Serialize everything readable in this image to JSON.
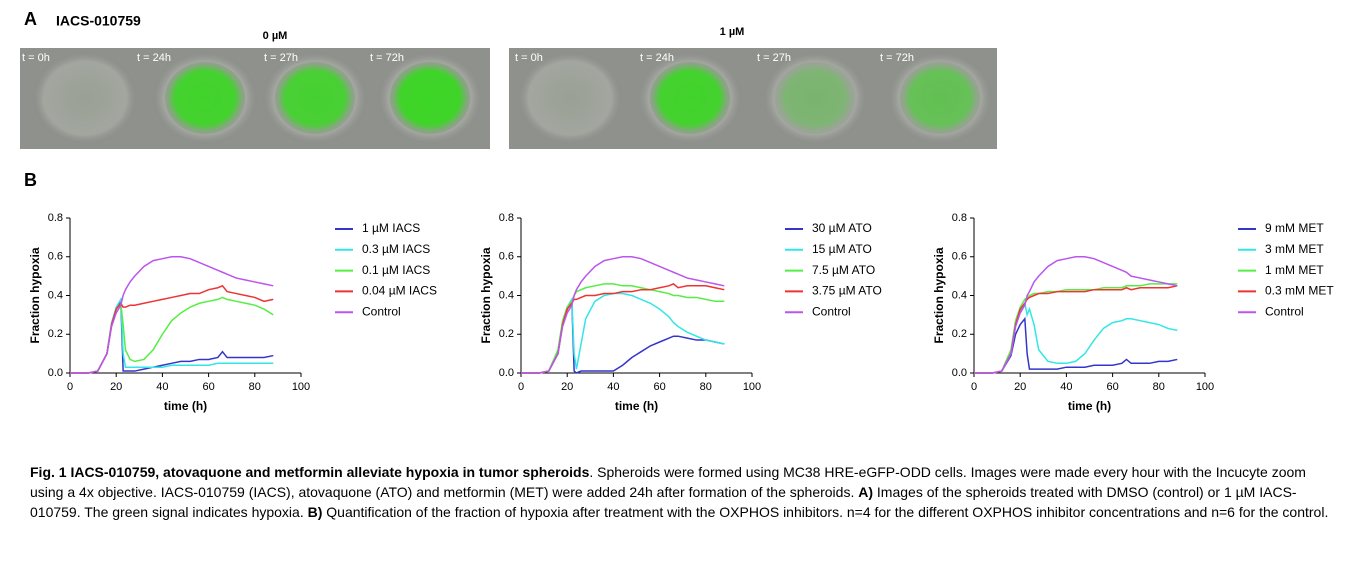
{
  "panel_a": {
    "label": "A",
    "title": "IACS-010759",
    "groups": [
      {
        "label": "0 µM",
        "frames": [
          "t = 0h",
          "t = 24h",
          "t = 27h",
          "t = 72h"
        ]
      },
      {
        "label": "1 µM",
        "frames": [
          "t = 0h",
          "t = 24h",
          "t = 27h",
          "t = 72h"
        ]
      }
    ]
  },
  "panel_b": {
    "label": "B"
  },
  "chart_data": [
    {
      "type": "line",
      "xlabel": "time (h)",
      "ylabel": "Fraction hypoxia",
      "xlim": [
        0,
        100
      ],
      "xticks": [
        0,
        20,
        40,
        60,
        80,
        100
      ],
      "ylim": [
        0,
        0.8
      ],
      "yticks": [
        {
          "value": 0,
          "label": "0.0"
        },
        0.2,
        0.4,
        0.6,
        0.8
      ],
      "x": [
        0,
        4,
        8,
        12,
        16,
        18,
        20,
        22,
        23,
        24,
        26,
        28,
        32,
        36,
        40,
        44,
        48,
        52,
        56,
        60,
        64,
        66,
        68,
        72,
        76,
        80,
        84,
        88
      ],
      "series": [
        {
          "name": "1 µM IACS",
          "color": "#3535cc",
          "values": [
            0,
            0,
            0,
            0.01,
            0.1,
            0.25,
            0.33,
            0.37,
            0.01,
            0.01,
            0.01,
            0.01,
            0.02,
            0.03,
            0.04,
            0.05,
            0.06,
            0.06,
            0.07,
            0.07,
            0.08,
            0.11,
            0.08,
            0.08,
            0.08,
            0.08,
            0.08,
            0.09
          ]
        },
        {
          "name": "0.3 µM IACS",
          "color": "#33e6e6",
          "values": [
            0,
            0,
            0,
            0.01,
            0.1,
            0.26,
            0.34,
            0.38,
            0.1,
            0.03,
            0.03,
            0.03,
            0.03,
            0.03,
            0.03,
            0.04,
            0.04,
            0.04,
            0.04,
            0.04,
            0.05,
            0.05,
            0.05,
            0.05,
            0.05,
            0.05,
            0.05,
            0.05
          ]
        },
        {
          "name": "0.1 µM IACS",
          "color": "#55ee44",
          "values": [
            0,
            0,
            0,
            0.01,
            0.1,
            0.25,
            0.33,
            0.36,
            0.25,
            0.12,
            0.07,
            0.06,
            0.07,
            0.12,
            0.2,
            0.27,
            0.31,
            0.34,
            0.36,
            0.37,
            0.38,
            0.39,
            0.38,
            0.37,
            0.36,
            0.35,
            0.33,
            0.3
          ]
        },
        {
          "name": "0.04 µM IACS",
          "color": "#ee3333",
          "values": [
            0,
            0,
            0,
            0.01,
            0.1,
            0.25,
            0.33,
            0.36,
            0.34,
            0.34,
            0.35,
            0.35,
            0.36,
            0.37,
            0.38,
            0.39,
            0.4,
            0.41,
            0.41,
            0.43,
            0.44,
            0.45,
            0.42,
            0.41,
            0.4,
            0.39,
            0.37,
            0.38
          ]
        },
        {
          "name": "Control",
          "color": "#bb55ee",
          "values": [
            0,
            0,
            0,
            0.01,
            0.1,
            0.24,
            0.31,
            0.35,
            0.4,
            0.43,
            0.47,
            0.5,
            0.55,
            0.58,
            0.59,
            0.6,
            0.6,
            0.59,
            0.57,
            0.55,
            0.53,
            0.52,
            0.51,
            0.49,
            0.48,
            0.47,
            0.46,
            0.45
          ]
        }
      ]
    },
    {
      "type": "line",
      "xlabel": "time (h)",
      "ylabel": "Fraction hypoxia",
      "xlim": [
        0,
        100
      ],
      "xticks": [
        0,
        20,
        40,
        60,
        80,
        100
      ],
      "ylim": [
        0,
        0.8
      ],
      "yticks": [
        {
          "value": 0,
          "label": "0.0"
        },
        0.2,
        0.4,
        0.6,
        0.8
      ],
      "x": [
        0,
        4,
        8,
        12,
        16,
        18,
        20,
        22,
        23,
        24,
        26,
        28,
        32,
        36,
        40,
        44,
        48,
        52,
        56,
        60,
        64,
        66,
        68,
        72,
        76,
        80,
        84,
        88
      ],
      "series": [
        {
          "name": "30 µM ATO",
          "color": "#3535cc",
          "values": [
            0,
            0,
            0,
            0.01,
            0.1,
            0.25,
            0.33,
            0.37,
            0.01,
            0,
            0.01,
            0.01,
            0.01,
            0.01,
            0.01,
            0.04,
            0.08,
            0.11,
            0.14,
            0.16,
            0.18,
            0.19,
            0.19,
            0.18,
            0.17,
            0.17,
            0.16,
            0.15
          ]
        },
        {
          "name": "15 µM ATO",
          "color": "#33e6e6",
          "values": [
            0,
            0,
            0,
            0.01,
            0.1,
            0.26,
            0.34,
            0.38,
            0.1,
            0.02,
            0.15,
            0.28,
            0.37,
            0.4,
            0.41,
            0.41,
            0.4,
            0.38,
            0.36,
            0.33,
            0.29,
            0.26,
            0.24,
            0.21,
            0.19,
            0.17,
            0.16,
            0.15
          ]
        },
        {
          "name": "7.5 µM  ATO",
          "color": "#55ee44",
          "values": [
            0,
            0,
            0,
            0.01,
            0.12,
            0.27,
            0.34,
            0.37,
            0.4,
            0.42,
            0.43,
            0.44,
            0.45,
            0.46,
            0.46,
            0.45,
            0.45,
            0.44,
            0.43,
            0.42,
            0.41,
            0.4,
            0.4,
            0.39,
            0.39,
            0.38,
            0.37,
            0.37
          ]
        },
        {
          "name": "3.75 µM ATO",
          "color": "#ee3333",
          "values": [
            0,
            0,
            0,
            0.01,
            0.1,
            0.25,
            0.33,
            0.36,
            0.38,
            0.38,
            0.39,
            0.4,
            0.4,
            0.41,
            0.41,
            0.42,
            0.42,
            0.43,
            0.43,
            0.44,
            0.45,
            0.46,
            0.44,
            0.45,
            0.45,
            0.45,
            0.44,
            0.43
          ]
        },
        {
          "name": "Control",
          "color": "#bb55ee",
          "values": [
            0,
            0,
            0,
            0.01,
            0.1,
            0.24,
            0.31,
            0.35,
            0.4,
            0.43,
            0.47,
            0.5,
            0.55,
            0.58,
            0.59,
            0.6,
            0.6,
            0.59,
            0.57,
            0.55,
            0.53,
            0.52,
            0.51,
            0.49,
            0.48,
            0.47,
            0.46,
            0.45
          ]
        }
      ]
    },
    {
      "type": "line",
      "xlabel": "time (h)",
      "ylabel": "Fraction hypoxia",
      "xlim": [
        0,
        100
      ],
      "xticks": [
        0,
        20,
        40,
        60,
        80,
        100
      ],
      "ylim": [
        0,
        0.8
      ],
      "yticks": [
        {
          "value": 0,
          "label": "0.0"
        },
        0.2,
        0.4,
        0.6,
        0.8
      ],
      "x": [
        0,
        4,
        8,
        12,
        16,
        18,
        20,
        22,
        23,
        24,
        26,
        28,
        32,
        36,
        40,
        44,
        48,
        52,
        56,
        60,
        64,
        66,
        68,
        72,
        76,
        80,
        84,
        88
      ],
      "series": [
        {
          "name": "9 mM MET",
          "color": "#3535cc",
          "values": [
            0,
            0,
            0,
            0.01,
            0.09,
            0.2,
            0.25,
            0.28,
            0.1,
            0.02,
            0.02,
            0.02,
            0.02,
            0.02,
            0.03,
            0.03,
            0.03,
            0.04,
            0.04,
            0.04,
            0.05,
            0.07,
            0.05,
            0.05,
            0.05,
            0.06,
            0.06,
            0.07
          ]
        },
        {
          "name": "3 mM MET",
          "color": "#33e6e6",
          "values": [
            0,
            0,
            0,
            0.01,
            0.1,
            0.25,
            0.32,
            0.36,
            0.3,
            0.33,
            0.25,
            0.12,
            0.06,
            0.05,
            0.05,
            0.06,
            0.1,
            0.17,
            0.23,
            0.26,
            0.27,
            0.28,
            0.28,
            0.27,
            0.26,
            0.25,
            0.23,
            0.22
          ]
        },
        {
          "name": "1 mM MET",
          "color": "#55ee44",
          "values": [
            0,
            0,
            0,
            0.01,
            0.12,
            0.27,
            0.34,
            0.38,
            0.39,
            0.4,
            0.41,
            0.41,
            0.42,
            0.42,
            0.43,
            0.43,
            0.43,
            0.43,
            0.44,
            0.44,
            0.44,
            0.45,
            0.45,
            0.45,
            0.46,
            0.46,
            0.46,
            0.46
          ]
        },
        {
          "name": "0.3 mM  MET",
          "color": "#ee3333",
          "values": [
            0,
            0,
            0,
            0.01,
            0.1,
            0.25,
            0.33,
            0.36,
            0.38,
            0.39,
            0.4,
            0.41,
            0.41,
            0.42,
            0.42,
            0.42,
            0.42,
            0.43,
            0.43,
            0.43,
            0.43,
            0.44,
            0.43,
            0.44,
            0.44,
            0.44,
            0.44,
            0.45
          ]
        },
        {
          "name": "Control",
          "color": "#bb55ee",
          "values": [
            0,
            0,
            0,
            0.01,
            0.1,
            0.24,
            0.31,
            0.35,
            0.4,
            0.42,
            0.47,
            0.5,
            0.55,
            0.58,
            0.59,
            0.6,
            0.6,
            0.59,
            0.57,
            0.55,
            0.53,
            0.52,
            0.5,
            0.49,
            0.48,
            0.47,
            0.46,
            0.45
          ]
        }
      ]
    }
  ],
  "caption": {
    "title": "Fig. 1 IACS-010759, atovaquone and metformin alleviate hypoxia in tumor spheroids",
    "text": ". Spheroids were formed using MC38 HRE-eGFP-ODD cells. Images were made every hour with the Incucyte zoom using a 4x objective. IACS-010759 (IACS), atovaquone (ATO) and metformin (MET) were added 24h after formation of the spheroids.",
    "a_label": "A)",
    "a_text": "Images of the spheroids treated with DMSO (control) or 1 µM IACS-010759. The green signal indicates hypoxia.",
    "b_label": "B)",
    "b_text": "Quantification of the fraction of hypoxia after treatment with the OXPHOS inhibitors. n=4 for the different OXPHOS inhibitor concentrations and n=6 for the control."
  }
}
